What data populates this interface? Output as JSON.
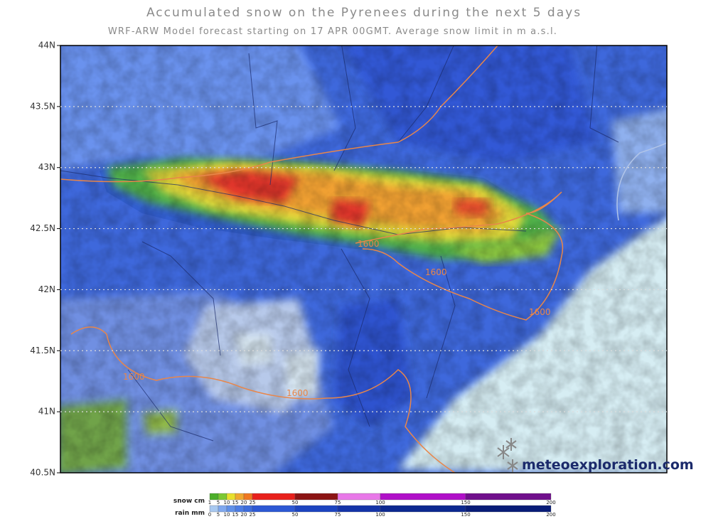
{
  "title": "Accumulated snow on the Pyrenees during the next 5 days",
  "subtitle": "WRF-ARW Model forecast starting on 17 APR 00GMT.  Average snow limit in m a.s.l.",
  "latitude_labels": [
    "44N",
    "43.5N",
    "43N",
    "42.5N",
    "42N",
    "41.5N",
    "41N",
    "40.5N"
  ],
  "contour_labels": [
    "1600",
    "1600",
    "1600",
    "1600",
    "1600"
  ],
  "brand": "meteoexploration.com",
  "legend": {
    "snow": {
      "label": "snow cm",
      "ticks": [
        1,
        5,
        10,
        15,
        20,
        25,
        50,
        75,
        100,
        150,
        200
      ]
    },
    "rain": {
      "label": "rain mm",
      "ticks": [
        0,
        5,
        10,
        15,
        20,
        25,
        50,
        75,
        100,
        150,
        200
      ]
    }
  }
}
